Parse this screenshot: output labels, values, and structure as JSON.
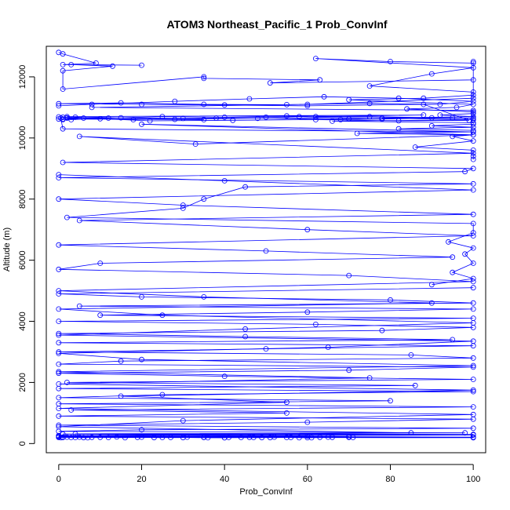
{
  "chart_data": {
    "type": "line",
    "title": "ATOM3 Northeast_Pacific_1 Prob_ConvInf",
    "xlabel": "Prob_ConvInf",
    "ylabel": "Altitude (m)",
    "xlim": [
      -3,
      103
    ],
    "ylim": [
      -300,
      13000
    ],
    "xticks": [
      0,
      20,
      40,
      60,
      80,
      100
    ],
    "yticks": [
      0,
      2000,
      4000,
      6000,
      8000,
      10000,
      12000
    ],
    "marker": "open-circle",
    "grid": false,
    "color": "#0000ff",
    "series": [
      {
        "x": [
          0,
          1,
          9,
          1,
          20,
          3,
          13,
          1,
          1,
          35,
          35,
          63,
          51,
          100,
          100,
          100,
          60,
          8,
          100,
          100,
          100,
          62,
          88,
          2,
          35,
          1,
          6,
          4,
          1,
          0.5,
          1,
          100,
          20,
          100,
          33,
          5,
          100,
          1,
          100,
          98,
          0,
          100,
          45,
          35,
          30,
          2,
          100,
          100,
          94,
          100,
          98,
          100,
          95,
          100,
          90
        ],
        "y": [
          12800,
          12750,
          12450,
          12400,
          12380,
          12400,
          12350,
          12200,
          11600,
          12000,
          11950,
          11900,
          11800,
          11900,
          12500,
          11300,
          11100,
          11000,
          10900,
          10600,
          10650,
          10700,
          10750,
          10700,
          10600,
          10620,
          10650,
          10680,
          10600,
          10650,
          10300,
          10200,
          10450,
          10100,
          9800,
          10050,
          9500,
          9200,
          9000,
          8900,
          8700,
          8500,
          8400,
          8000,
          7700,
          7400,
          7200,
          6900,
          6600,
          6400,
          6200,
          5900,
          5600,
          5400,
          5200
        ]
      },
      {
        "x": [
          100,
          0,
          20,
          80,
          100,
          5,
          100,
          60,
          10,
          100,
          0,
          62,
          100,
          78,
          0,
          45,
          95,
          0,
          100,
          50,
          0,
          85,
          100,
          15,
          0,
          100,
          70,
          0,
          40,
          100,
          2,
          86,
          0,
          100,
          25,
          0,
          80,
          0,
          100,
          3,
          55,
          0,
          100,
          60,
          0,
          100,
          20,
          0,
          98,
          4,
          100,
          0,
          70,
          1,
          100
        ],
        "y": [
          5100,
          4900,
          4800,
          4700,
          4600,
          4500,
          4400,
          4300,
          4200,
          4100,
          4000,
          3900,
          3800,
          3700,
          3600,
          3500,
          3400,
          3300,
          3200,
          3100,
          3000,
          2900,
          2800,
          2700,
          2600,
          2500,
          2400,
          2300,
          2200,
          2100,
          2000,
          1900,
          1800,
          1700,
          1600,
          1500,
          1400,
          1300,
          1200,
          1100,
          1000,
          900,
          800,
          700,
          600,
          500,
          450,
          400,
          350,
          320,
          300,
          260,
          230,
          200,
          200
        ]
      },
      {
        "x": [
          0,
          40,
          100,
          0,
          30,
          100,
          5,
          60,
          100,
          0,
          50,
          95,
          10,
          0,
          70,
          100,
          0,
          35,
          90,
          0,
          25,
          100,
          45,
          0,
          100,
          65,
          0,
          20,
          100,
          0,
          75,
          0,
          100,
          15,
          55,
          0,
          100,
          30,
          0,
          85,
          0,
          100,
          40,
          0,
          100,
          1,
          60,
          0,
          100,
          35
        ],
        "y": [
          8800,
          8600,
          8300,
          8000,
          7800,
          7500,
          7300,
          7000,
          6800,
          6500,
          6300,
          6100,
          5900,
          5700,
          5500,
          5300,
          5000,
          4800,
          4600,
          4400,
          4200,
          3950,
          3750,
          3550,
          3350,
          3150,
          2950,
          2750,
          2550,
          2350,
          2150,
          1950,
          1750,
          1550,
          1350,
          1150,
          950,
          750,
          550,
          350,
          250,
          210,
          190,
          230,
          280,
          310,
          240,
          210,
          190,
          200
        ]
      },
      {
        "x": [
          100,
          80,
          62,
          100,
          90,
          75,
          100,
          100,
          88,
          70,
          100,
          96,
          84,
          100,
          100,
          92,
          100,
          78,
          100,
          66,
          100,
          100,
          90,
          100,
          82,
          100,
          100,
          72,
          100,
          95,
          100,
          86,
          100,
          100,
          100
        ],
        "y": [
          12450,
          12500,
          12600,
          12300,
          12100,
          11700,
          11500,
          11400,
          11300,
          11250,
          11100,
          11000,
          10950,
          10850,
          10800,
          10750,
          10700,
          10650,
          10600,
          10550,
          10500,
          10450,
          10400,
          10350,
          10300,
          10250,
          10200,
          10150,
          10100,
          10050,
          9900,
          9700,
          9600,
          9400,
          9300
        ]
      },
      {
        "x": [
          2,
          15,
          30,
          50,
          70,
          90,
          100,
          75,
          55,
          40,
          25,
          12,
          3,
          0,
          1,
          18,
          38,
          58,
          78,
          95,
          68,
          48,
          28,
          10,
          2,
          0,
          22,
          42,
          62,
          82,
          99,
          88,
          60,
          40,
          20,
          0,
          15,
          35,
          55,
          75,
          92,
          100,
          82,
          64,
          46,
          28,
          8,
          0
        ],
        "y": [
          10650,
          10660,
          10640,
          10680,
          10620,
          10660,
          10640,
          10700,
          10720,
          10680,
          10700,
          10650,
          10600,
          10620,
          10680,
          10600,
          10650,
          10700,
          10620,
          10660,
          10600,
          10640,
          10610,
          10630,
          10660,
          10690,
          10560,
          10580,
          10600,
          10560,
          10580,
          11100,
          11050,
          11080,
          11100,
          11120,
          11150,
          11100,
          11090,
          11130,
          11100,
          11200,
          11300,
          11350,
          11280,
          11200,
          11100,
          11050
        ]
      },
      {
        "x": [
          47,
          55,
          60,
          65,
          70,
          52,
          58,
          63,
          44,
          49,
          35,
          40,
          20,
          25,
          30,
          10,
          14,
          5,
          7,
          3,
          1,
          0,
          0.5,
          1,
          2,
          4,
          6,
          8,
          12,
          16,
          19,
          23,
          27,
          31,
          36,
          41,
          46,
          51,
          56,
          61,
          66,
          71
        ],
        "y": [
          200,
          200,
          190,
          210,
          200,
          210,
          190,
          205,
          200,
          195,
          205,
          190,
          210,
          200,
          195,
          205,
          215,
          210,
          190,
          200,
          210,
          200,
          190,
          200,
          210,
          200,
          195,
          205,
          200,
          190,
          205,
          195,
          200,
          210,
          190,
          200,
          205,
          195,
          200,
          190,
          205,
          200
        ]
      }
    ]
  }
}
